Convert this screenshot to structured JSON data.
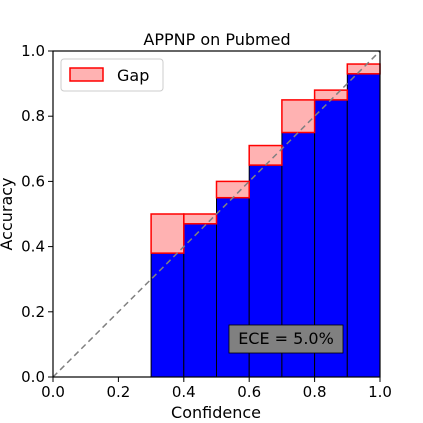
{
  "chart_data": {
    "type": "bar",
    "title": "APPNP on Pubmed",
    "xlabel": "Confidence",
    "ylabel": "Accuracy",
    "xlim": [
      0.0,
      1.0
    ],
    "ylim": [
      0.0,
      1.0
    ],
    "xticks": [
      "0.0",
      "0.2",
      "0.4",
      "0.6",
      "0.8",
      "1.0"
    ],
    "yticks": [
      "0.0",
      "0.2",
      "0.4",
      "0.6",
      "0.8",
      "1.0"
    ],
    "grid": false,
    "legend_position": "top-left",
    "legend": {
      "gap_label": "Gap"
    },
    "ece_label": "ECE = 5.0%",
    "bin_edges": [
      0.0,
      0.1,
      0.2,
      0.3,
      0.4,
      0.5,
      0.6,
      0.7,
      0.8,
      0.9,
      1.0
    ],
    "accuracy": [
      0.0,
      0.0,
      0.0,
      0.38,
      0.47,
      0.55,
      0.65,
      0.75,
      0.85,
      0.93
    ],
    "confidence": [
      0.0,
      0.0,
      0.0,
      0.5,
      0.5,
      0.6,
      0.71,
      0.85,
      0.88,
      0.96
    ],
    "colors": {
      "accuracy_bar": "#0000ff",
      "gap_fill": "#ff0000",
      "gap_edge": "#ff0000",
      "bar_edge": "#000000",
      "diagonal": "#808080",
      "ece_box": "#808080"
    }
  }
}
